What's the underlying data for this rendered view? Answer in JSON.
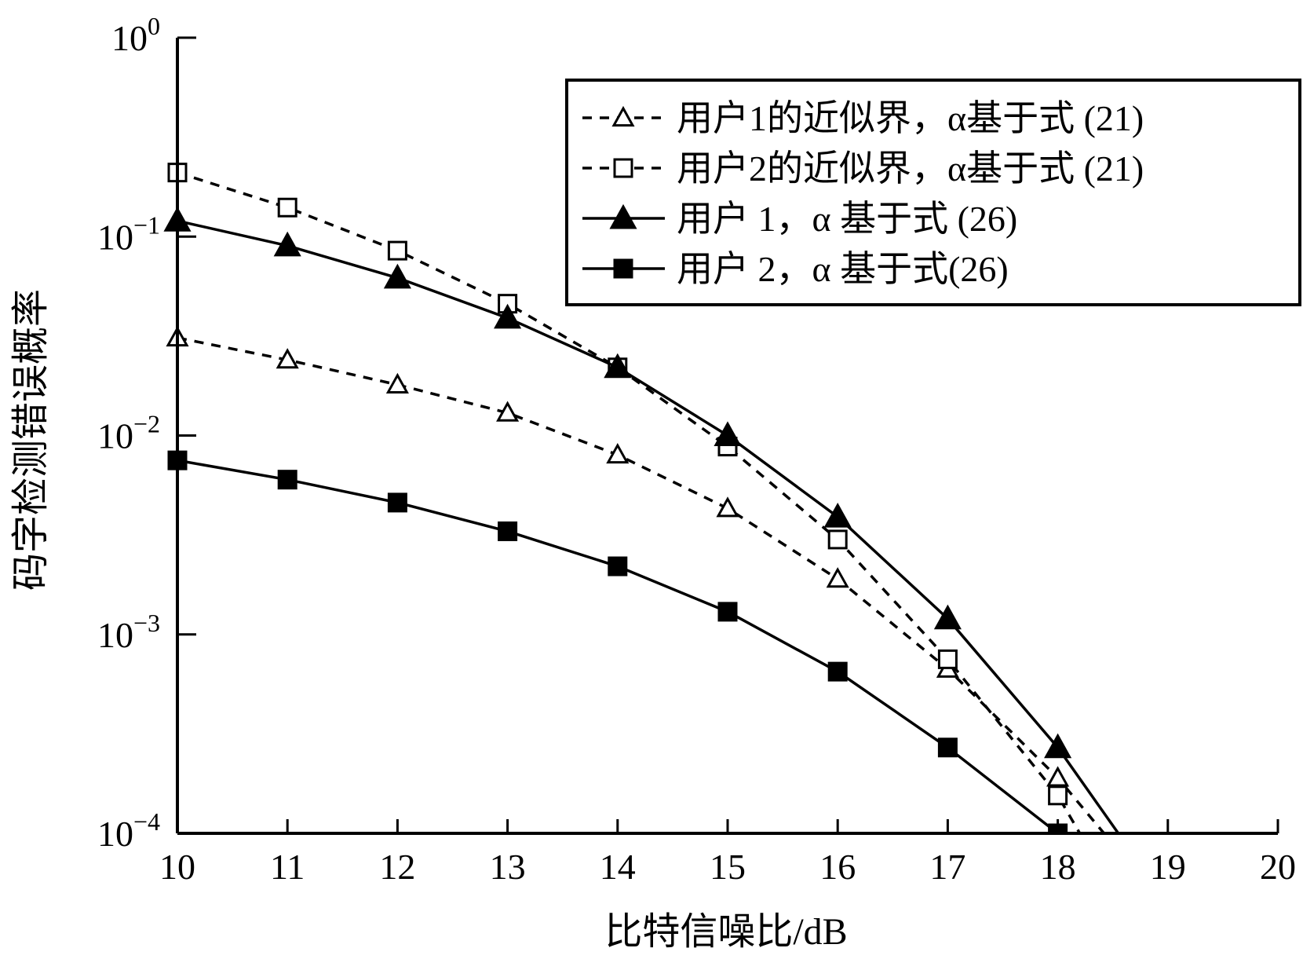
{
  "chart_data": {
    "type": "line",
    "title": "",
    "xlabel": "比特信噪比/dB",
    "ylabel": "码字检测错误概率",
    "xlim": [
      10,
      20
    ],
    "ylim": [
      0.0001,
      1
    ],
    "yscale": "log",
    "grid": false,
    "legend_position": "top-right",
    "x_ticks": [
      "10",
      "11",
      "12",
      "13",
      "14",
      "15",
      "16",
      "17",
      "18",
      "19",
      "20"
    ],
    "y_ticks": [
      {
        "base": "10",
        "exp": "0",
        "value": 1
      },
      {
        "base": "10",
        "exp": "−1",
        "value": 0.1
      },
      {
        "base": "10",
        "exp": "−2",
        "value": 0.01
      },
      {
        "base": "10",
        "exp": "−3",
        "value": 0.001
      },
      {
        "base": "10",
        "exp": "−4",
        "value": 0.0001
      }
    ],
    "series": [
      {
        "name": "用户1的近似界，α基于式 (21)",
        "style": "dashed",
        "marker": "triangle-open",
        "color": "#000000",
        "x": [
          10,
          11,
          12,
          13,
          14,
          15,
          16,
          17,
          18,
          18.42
        ],
        "y": [
          0.031,
          0.024,
          0.018,
          0.013,
          0.008,
          0.0043,
          0.0019,
          0.00067,
          0.00019,
          0.0001
        ]
      },
      {
        "name": "用户2的近似界，α基于式 (21)",
        "style": "dashed",
        "marker": "square-open",
        "color": "#000000",
        "x": [
          10,
          11,
          12,
          13,
          14,
          15,
          16,
          17,
          18,
          18.2
        ],
        "y": [
          0.21,
          0.14,
          0.085,
          0.046,
          0.022,
          0.0088,
          0.003,
          0.00075,
          0.000155,
          0.0001
        ]
      },
      {
        "name": "用户 1，α 基于式 (26)",
        "style": "solid",
        "marker": "triangle-filled",
        "color": "#000000",
        "x": [
          10,
          11,
          12,
          13,
          14,
          15,
          16,
          17,
          18,
          18.55
        ],
        "y": [
          0.12,
          0.09,
          0.062,
          0.039,
          0.022,
          0.01,
          0.0039,
          0.0012,
          0.00027,
          0.0001
        ]
      },
      {
        "name": "用户 2，α 基于式(26)",
        "style": "solid",
        "marker": "square-filled",
        "color": "#000000",
        "x": [
          10,
          11,
          12,
          13,
          14,
          15,
          16,
          17,
          18
        ],
        "y": [
          0.0075,
          0.006,
          0.0046,
          0.0033,
          0.0022,
          0.0013,
          0.00065,
          0.00027,
          0.0001
        ]
      }
    ]
  }
}
